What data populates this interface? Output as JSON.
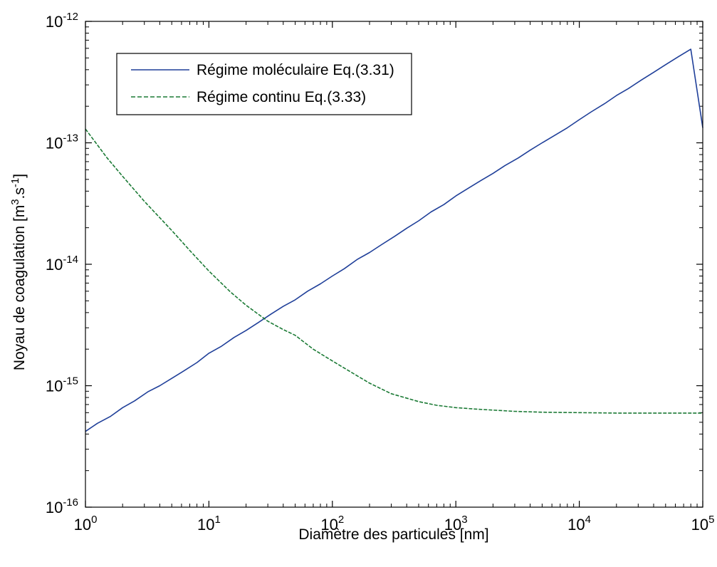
{
  "chart_data": {
    "type": "line",
    "xscale": "log",
    "yscale": "log",
    "xlim": [
      1,
      100000
    ],
    "ylim": [
      1e-16,
      1e-12
    ],
    "xlabel": "Diamètre des particules [nm]",
    "ylabel": {
      "prefix": "Noyau de coagulation [m",
      "sup1": "3",
      "mid": ".s",
      "sup2": "-1",
      "suffix": "]"
    },
    "grid": false,
    "legend_position": "top-left",
    "x_ticks": [
      {
        "value": 1,
        "base": "10",
        "exp": "0"
      },
      {
        "value": 10,
        "base": "10",
        "exp": "1"
      },
      {
        "value": 100,
        "base": "10",
        "exp": "2"
      },
      {
        "value": 1000,
        "base": "10",
        "exp": "3"
      },
      {
        "value": 10000,
        "base": "10",
        "exp": "4"
      },
      {
        "value": 100000,
        "base": "10",
        "exp": "5"
      }
    ],
    "y_ticks": [
      {
        "value": 1e-16,
        "base": "10",
        "exp": "-16"
      },
      {
        "value": 1e-15,
        "base": "10",
        "exp": "-15"
      },
      {
        "value": 1e-14,
        "base": "10",
        "exp": "-14"
      },
      {
        "value": 1e-13,
        "base": "10",
        "exp": "-13"
      },
      {
        "value": 1e-12,
        "base": "10",
        "exp": "-12"
      }
    ],
    "series": [
      {
        "name": "Régime moléculaire Eq.(3.31)",
        "color": "#1f3f99",
        "style": "solid",
        "x": [
          1,
          1.25,
          1.6,
          2,
          2.5,
          3.2,
          4,
          5,
          6.3,
          8,
          10,
          12.5,
          16,
          20,
          25,
          32,
          40,
          50,
          63,
          80,
          100,
          125,
          160,
          200,
          250,
          320,
          400,
          500,
          630,
          800,
          1000,
          1250,
          1600,
          2000,
          2500,
          3200,
          4000,
          5000,
          6300,
          8000,
          10000,
          12500,
          16000,
          20000,
          25000,
          32000,
          40000,
          50000,
          63000,
          80000,
          100000
        ],
        "y": [
          4.2e-16,
          4.9e-16,
          5.6e-16,
          6.6e-16,
          7.5e-16,
          8.9e-16,
          1e-15,
          1.15e-15,
          1.33e-15,
          1.55e-15,
          1.85e-15,
          2.1e-15,
          2.5e-15,
          2.85e-15,
          3.3e-15,
          3.9e-15,
          4.5e-15,
          5.1e-15,
          6e-15,
          6.9e-15,
          8e-15,
          9.2e-15,
          1.1e-14,
          1.25e-14,
          1.45e-14,
          1.7e-14,
          1.98e-14,
          2.28e-14,
          2.7e-14,
          3.1e-14,
          3.65e-14,
          4.2e-14,
          4.9e-14,
          5.6e-14,
          6.5e-14,
          7.5e-14,
          8.7e-14,
          1e-13,
          1.15e-13,
          1.33e-13,
          1.55e-13,
          1.8e-13,
          2.1e-13,
          2.45e-13,
          2.8e-13,
          3.3e-13,
          3.8e-13,
          4.4e-13,
          5.1e-13,
          5.9e-13,
          1.33e-13
        ]
      },
      {
        "name": "Régime continu Eq.(3.33)",
        "color": "#1b7a35",
        "style": "dashed",
        "x": [
          1,
          1.5,
          2,
          3,
          5,
          7,
          10,
          15,
          20,
          30,
          40,
          50,
          70,
          100,
          150,
          200,
          300,
          500,
          700,
          1000,
          1500,
          2000,
          3000,
          5000,
          10000,
          20000,
          50000,
          100000
        ],
        "y": [
          1.3e-13,
          7.5e-14,
          5.3e-14,
          3.3e-14,
          1.9e-14,
          1.3e-14,
          8.8e-15,
          5.9e-15,
          4.6e-15,
          3.4e-15,
          2.9e-15,
          2.6e-15,
          2e-15,
          1.6e-15,
          1.25e-15,
          1.05e-15,
          8.6e-16,
          7.4e-16,
          6.9e-16,
          6.6e-16,
          6.4e-16,
          6.3e-16,
          6.15e-16,
          6.05e-16,
          6e-16,
          5.95e-16,
          5.95e-16,
          5.95e-16
        ]
      }
    ]
  }
}
